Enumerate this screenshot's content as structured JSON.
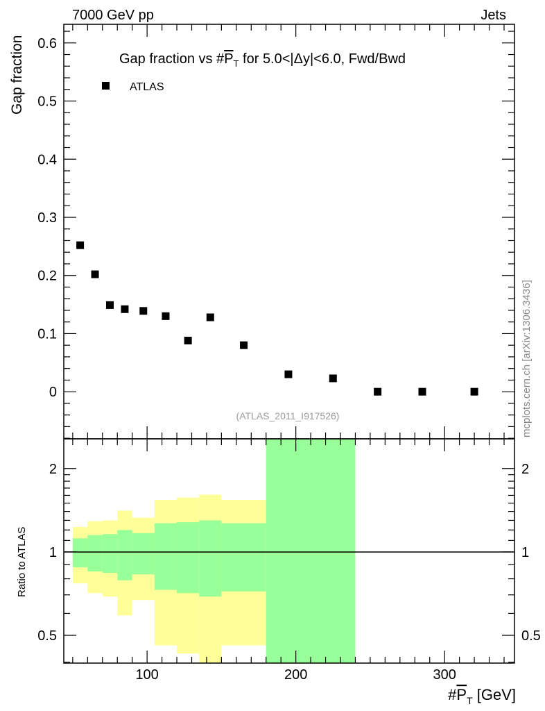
{
  "header": {
    "left": "7000 GeV pp",
    "right": "Jets"
  },
  "side_label": "mcplots.cern.ch [arXiv:1306.3436]",
  "analysis_label": "(ATLAS_2011_I917526)",
  "colors": {
    "yellow": "#ffff99",
    "green": "#99ff99",
    "marker": "#000000",
    "gray": "#888888"
  },
  "chart_data": [
    {
      "type": "scatter",
      "title_prefix": "Gap fraction vs #",
      "title_pt": "P",
      "title_sub": "T",
      "title_suffix": " for 5.0<|Δy|<6.0, Fwd/Bwd",
      "ylabel": "Gap fraction",
      "xlim": [
        44,
        347
      ],
      "ylim": [
        -0.081,
        0.632
      ],
      "yticks": [
        "0",
        "0.1",
        "0.2",
        "0.3",
        "0.4",
        "0.5",
        "0.6"
      ],
      "legend": [
        {
          "label": "ATLAS",
          "marker": "square"
        }
      ],
      "legend_placement": "top-left",
      "series": [
        {
          "name": "ATLAS",
          "x": [
            55,
            65,
            75,
            85,
            97.5,
            112.5,
            127.5,
            142.5,
            165,
            195,
            225,
            255,
            285,
            320
          ],
          "y": [
            0.252,
            0.202,
            0.149,
            0.142,
            0.139,
            0.13,
            0.088,
            0.128,
            0.08,
            0.03,
            0.023,
            0,
            0,
            0
          ]
        }
      ]
    },
    {
      "type": "area",
      "ylabel": "Ratio to ATLAS",
      "xlabel_prefix": "#",
      "xlabel_pt": "P",
      "xlabel_sub": "T",
      "xlabel_suffix": " [GeV]",
      "yscale": "log",
      "ylim": [
        0.397,
        2.56
      ],
      "xlim": [
        44,
        347
      ],
      "xticks": [
        "100",
        "200",
        "300"
      ],
      "yticks": [
        "0.5",
        "1",
        "2"
      ],
      "bin_edges": [
        50,
        60,
        70,
        80,
        90,
        105,
        120,
        135,
        150,
        180,
        240
      ],
      "yellow_upper": [
        1.23,
        1.29,
        1.3,
        1.41,
        1.33,
        1.54,
        1.57,
        1.61,
        1.54,
        3.0
      ],
      "yellow_lower": [
        0.77,
        0.71,
        0.69,
        0.59,
        0.67,
        0.46,
        0.43,
        0.35,
        0.46,
        0.3
      ],
      "green_upper": [
        1.12,
        1.15,
        1.16,
        1.2,
        1.17,
        1.27,
        1.28,
        1.3,
        1.27,
        3.0
      ],
      "green_lower": [
        0.88,
        0.85,
        0.84,
        0.79,
        0.83,
        0.73,
        0.71,
        0.69,
        0.72,
        0.3
      ],
      "reference_line": 1
    }
  ]
}
